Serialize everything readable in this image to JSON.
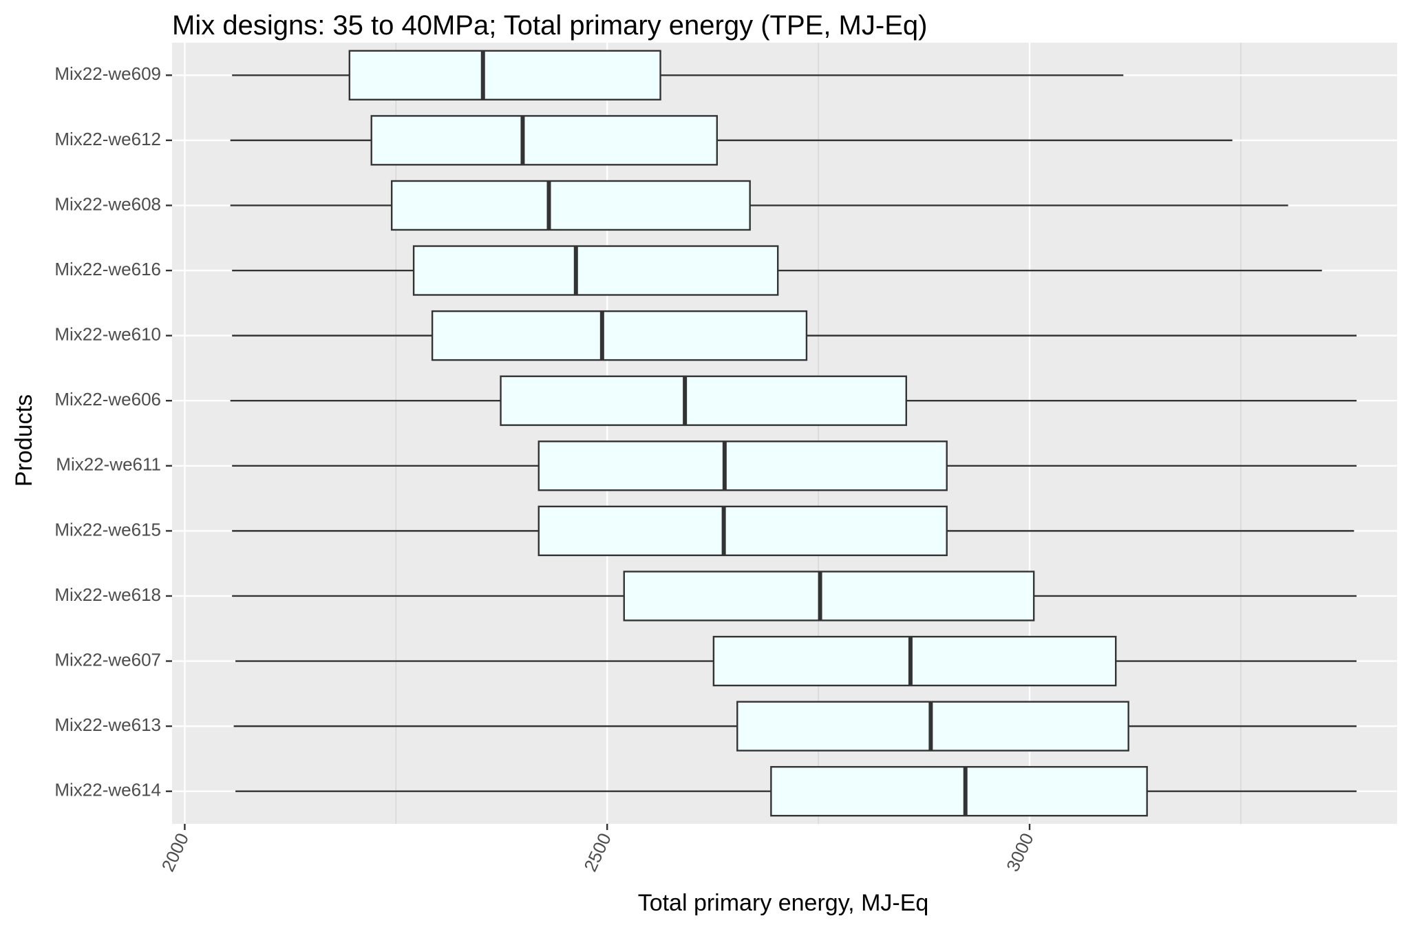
{
  "chart_data": {
    "type": "boxplot",
    "orientation": "horizontal",
    "title": "Mix designs: 35 to 40MPa; Total primary energy (TPE, MJ-Eq)",
    "xlabel": "Total primary energy, MJ-Eq",
    "ylabel": "Products",
    "xlim": [
      1985,
      3435
    ],
    "xticks": [
      2000,
      2500,
      3000
    ],
    "x_tick_labels": [
      "2000",
      "2500",
      "3000"
    ],
    "grid": true,
    "legend": "none",
    "box_fill": "#f0ffff",
    "box_stroke": "#333333",
    "panel_background": "#ebebeb",
    "categories": [
      "Mix22-we609",
      "Mix22-we612",
      "Mix22-we608",
      "Mix22-we616",
      "Mix22-we610",
      "Mix22-we606",
      "Mix22-we611",
      "Mix22-we615",
      "Mix22-we618",
      "Mix22-we607",
      "Mix22-we613",
      "Mix22-we614"
    ],
    "boxes": [
      {
        "label": "Mix22-we609",
        "whisker_low": 2056,
        "q1": 2195,
        "median": 2353,
        "q3": 2563,
        "whisker_high": 3111
      },
      {
        "label": "Mix22-we612",
        "whisker_low": 2054,
        "q1": 2221,
        "median": 2400,
        "q3": 2630,
        "whisker_high": 3240
      },
      {
        "label": "Mix22-we608",
        "whisker_low": 2054,
        "q1": 2245,
        "median": 2431,
        "q3": 2669,
        "whisker_high": 3306
      },
      {
        "label": "Mix22-we616",
        "whisker_low": 2056,
        "q1": 2271,
        "median": 2463,
        "q3": 2702,
        "whisker_high": 3346
      },
      {
        "label": "Mix22-we610",
        "whisker_low": 2056,
        "q1": 2293,
        "median": 2494,
        "q3": 2736,
        "whisker_high": 3387
      },
      {
        "label": "Mix22-we606",
        "whisker_low": 2054,
        "q1": 2374,
        "median": 2592,
        "q3": 2854,
        "whisker_high": 3387
      },
      {
        "label": "Mix22-we611",
        "whisker_low": 2056,
        "q1": 2419,
        "median": 2639,
        "q3": 2902,
        "whisker_high": 3387
      },
      {
        "label": "Mix22-we615",
        "whisker_low": 2056,
        "q1": 2419,
        "median": 2638,
        "q3": 2902,
        "whisker_high": 3384
      },
      {
        "label": "Mix22-we618",
        "whisker_low": 2056,
        "q1": 2520,
        "median": 2752,
        "q3": 3005,
        "whisker_high": 3387
      },
      {
        "label": "Mix22-we607",
        "whisker_low": 2060,
        "q1": 2626,
        "median": 2859,
        "q3": 3102,
        "whisker_high": 3387
      },
      {
        "label": "Mix22-we613",
        "whisker_low": 2058,
        "q1": 2654,
        "median": 2883,
        "q3": 3117,
        "whisker_high": 3387
      },
      {
        "label": "Mix22-we614",
        "whisker_low": 2060,
        "q1": 2694,
        "median": 2924,
        "q3": 3139,
        "whisker_high": 3387
      }
    ]
  }
}
